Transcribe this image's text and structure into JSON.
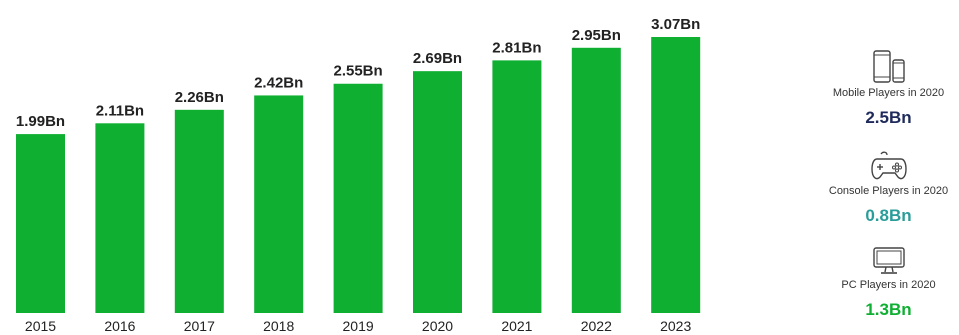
{
  "chart_data": {
    "type": "bar",
    "categories": [
      "2015",
      "2016",
      "2017",
      "2018",
      "2019",
      "2020",
      "2021",
      "2022",
      "2023"
    ],
    "values": [
      1.99,
      2.11,
      2.26,
      2.42,
      2.55,
      2.69,
      2.81,
      2.95,
      3.07
    ],
    "data_labels": [
      "1.99Bn",
      "2.11Bn",
      "2.26Bn",
      "2.42Bn",
      "2.55Bn",
      "2.69Bn",
      "2.81Bn",
      "2.95Bn",
      "3.07Bn"
    ],
    "ylim": [
      0,
      3.07
    ],
    "bar_color": "#0faf32",
    "grid": false,
    "legend": "none"
  },
  "stats": [
    {
      "icon": "mobile-devices-icon",
      "caption": "Mobile Players in 2020",
      "value": "2.5Bn",
      "color": "#1f2a5c"
    },
    {
      "icon": "game-controller-icon",
      "caption": "Console Players in 2020",
      "value": "0.8Bn",
      "color": "#2a9d9a"
    },
    {
      "icon": "monitor-icon",
      "caption": "PC Players in 2020",
      "value": "1.3Bn",
      "color": "#0faf32"
    }
  ]
}
